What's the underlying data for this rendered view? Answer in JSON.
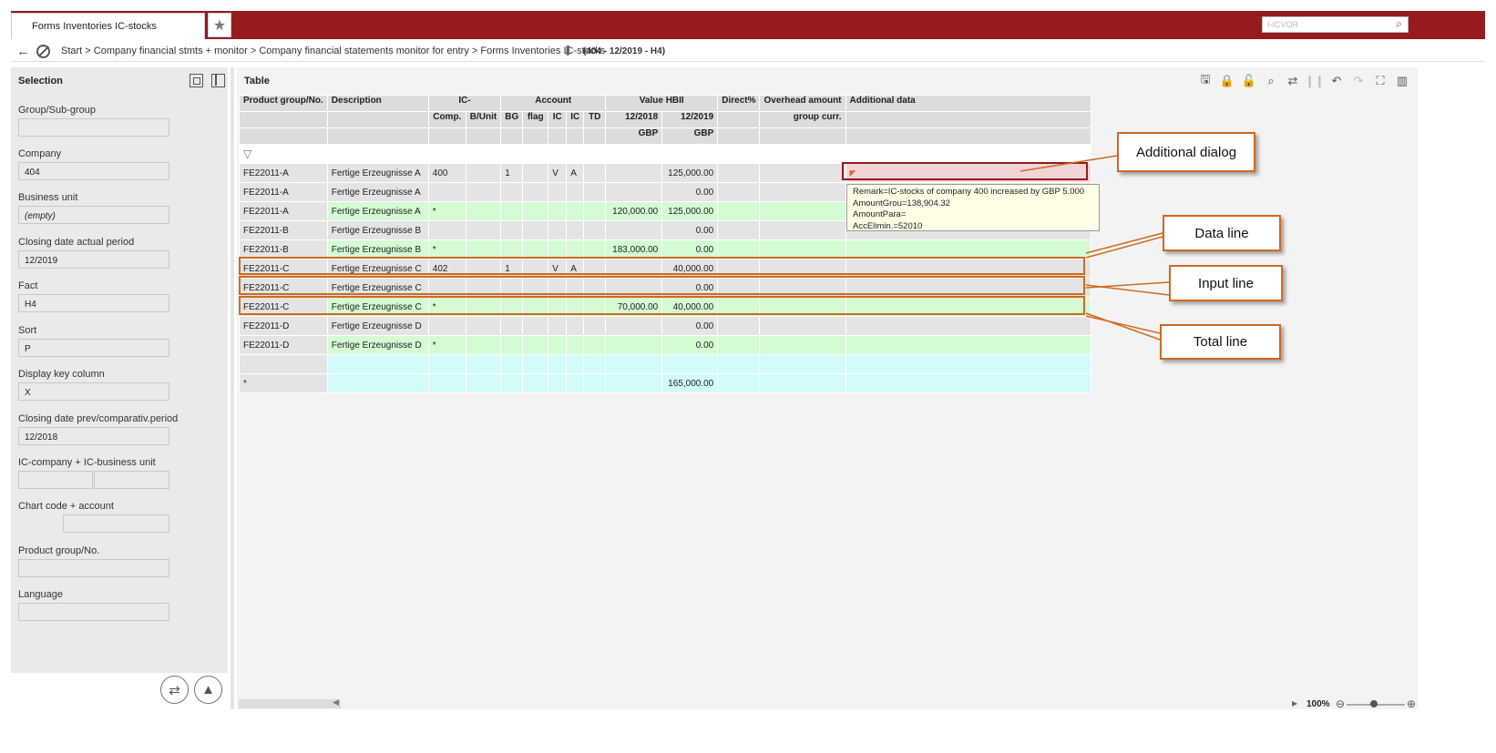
{
  "tab": {
    "title": "Forms Inventories IC-stocks"
  },
  "search": {
    "value": "I-ICVOR"
  },
  "breadcrumb": {
    "path": "Start > Company financial stmts + monitor > Company financial statements monitor for entry > Forms Inventories IC-stocks",
    "context": "(404 - 12/2019 - H4)"
  },
  "selection": {
    "title": "Selection",
    "fields": [
      {
        "label": "Group/Sub-group",
        "value": ""
      },
      {
        "label": "Company",
        "value": "404"
      },
      {
        "label": "Business unit",
        "value": "(empty)"
      },
      {
        "label": "Closing date actual period",
        "value": "12/2019"
      },
      {
        "label": "Fact",
        "value": "H4"
      },
      {
        "label": "Sort",
        "value": "P"
      },
      {
        "label": "Display key column",
        "value": "X"
      },
      {
        "label": "Closing date prev/comparativ.period",
        "value": "12/2018"
      },
      {
        "label": "IC-company + IC-business unit",
        "value": ""
      },
      {
        "label": "Chart code + account",
        "value": ""
      },
      {
        "label": "Product group/No.",
        "value": ""
      },
      {
        "label": "Language",
        "value": ""
      }
    ]
  },
  "table": {
    "title": "Table",
    "headers": {
      "product": "Product group/No.",
      "description": "Description",
      "ic": "IC-",
      "comp": "Comp.",
      "bunit": "B/Unit",
      "account": "Account",
      "bg": "BG",
      "flag": "flag",
      "ic1": "IC",
      "ic2": "IC",
      "td": "TD",
      "value_hbii": "Value HBII",
      "y2018": "12/2018",
      "y2019": "12/2019",
      "gbp1": "GBP",
      "gbp2": "GBP",
      "direct": "Direct%",
      "overhead": "Overhead amount",
      "groupcurr": "group curr.",
      "additional": "Additional data"
    },
    "rows": [
      {
        "type": "gray",
        "product": "FE22011-A",
        "desc": "Fertige Erzeugnisse A",
        "comp": "400",
        "bunit": "",
        "bg": "1",
        "flag": "",
        "ic1": "V",
        "ic2": "A",
        "td": "",
        "v2018": "",
        "v2019": "125,000.00"
      },
      {
        "type": "gray",
        "product": "FE22011-A",
        "desc": "Fertige Erzeugnisse A",
        "comp": "",
        "bunit": "",
        "bg": "",
        "flag": "",
        "ic1": "",
        "ic2": "",
        "td": "",
        "v2018": "",
        "v2019": "0.00"
      },
      {
        "type": "green",
        "product": "FE22011-A",
        "desc": "Fertige Erzeugnisse A",
        "comp": "*",
        "bunit": "",
        "bg": "",
        "flag": "",
        "ic1": "",
        "ic2": "",
        "td": "",
        "v2018": "120,000.00",
        "v2019": "125,000.00"
      },
      {
        "type": "gray",
        "product": "FE22011-B",
        "desc": "Fertige Erzeugnisse B",
        "comp": "",
        "bunit": "",
        "bg": "",
        "flag": "",
        "ic1": "",
        "ic2": "",
        "td": "",
        "v2018": "",
        "v2019": "0.00"
      },
      {
        "type": "green",
        "product": "FE22011-B",
        "desc": "Fertige Erzeugnisse B",
        "comp": "*",
        "bunit": "",
        "bg": "",
        "flag": "",
        "ic1": "",
        "ic2": "",
        "td": "",
        "v2018": "183,000.00",
        "v2019": "0.00"
      },
      {
        "type": "gray",
        "product": "FE22011-C",
        "desc": "Fertige Erzeugnisse C",
        "comp": "402",
        "bunit": "",
        "bg": "1",
        "flag": "",
        "ic1": "V",
        "ic2": "A",
        "td": "",
        "v2018": "",
        "v2019": "40,000.00"
      },
      {
        "type": "gray",
        "product": "FE22011-C",
        "desc": "Fertige Erzeugnisse C",
        "comp": "",
        "bunit": "",
        "bg": "",
        "flag": "",
        "ic1": "",
        "ic2": "",
        "td": "",
        "v2018": "",
        "v2019": "0.00"
      },
      {
        "type": "green",
        "product": "FE22011-C",
        "desc": "Fertige Erzeugnisse C",
        "comp": "*",
        "bunit": "",
        "bg": "",
        "flag": "",
        "ic1": "",
        "ic2": "",
        "td": "",
        "v2018": "70,000.00",
        "v2019": "40,000.00"
      },
      {
        "type": "gray",
        "product": "FE22011-D",
        "desc": "Fertige Erzeugnisse D",
        "comp": "",
        "bunit": "",
        "bg": "",
        "flag": "",
        "ic1": "",
        "ic2": "",
        "td": "",
        "v2018": "",
        "v2019": "0.00"
      },
      {
        "type": "green",
        "product": "FE22011-D",
        "desc": "Fertige Erzeugnisse D",
        "comp": "*",
        "bunit": "",
        "bg": "",
        "flag": "",
        "ic1": "",
        "ic2": "",
        "td": "",
        "v2018": "",
        "v2019": "0.00"
      },
      {
        "type": "cyan",
        "product": "",
        "desc": "",
        "comp": "",
        "bunit": "",
        "bg": "",
        "flag": "",
        "ic1": "",
        "ic2": "",
        "td": "",
        "v2018": "",
        "v2019": ""
      },
      {
        "type": "cyan",
        "product": "*",
        "desc": "",
        "comp": "",
        "bunit": "",
        "bg": "",
        "flag": "",
        "ic1": "",
        "ic2": "",
        "td": "",
        "v2018": "",
        "v2019": "165,000.00"
      }
    ]
  },
  "tooltip": {
    "lines": [
      "Remark=IC-stocks of company 400 increased by GBP 5.000",
      "AmountGrou=138,904.32",
      "AmountPara=",
      "AccElimin.=52010"
    ]
  },
  "annotations": {
    "additional_dialog": "Additional dialog",
    "data_line": "Data line",
    "input_line": "Input line",
    "total_line": "Total line"
  },
  "zoom": {
    "value": "100%"
  },
  "colors": {
    "brand": "#951b1e",
    "annotation": "#d06a1f",
    "total_row": "#d4fbd4",
    "sum_row": "#d2fbfb"
  },
  "icons": [
    "star-icon",
    "search-icon",
    "back-arrow-icon",
    "cancel-icon",
    "download-arrow-icon",
    "save-icon",
    "lock-icon",
    "unlock-icon",
    "search-icon",
    "refresh-icon",
    "chart-icon",
    "undo-icon",
    "redo-icon",
    "expand-icon",
    "panel-icon",
    "filter-icon"
  ]
}
